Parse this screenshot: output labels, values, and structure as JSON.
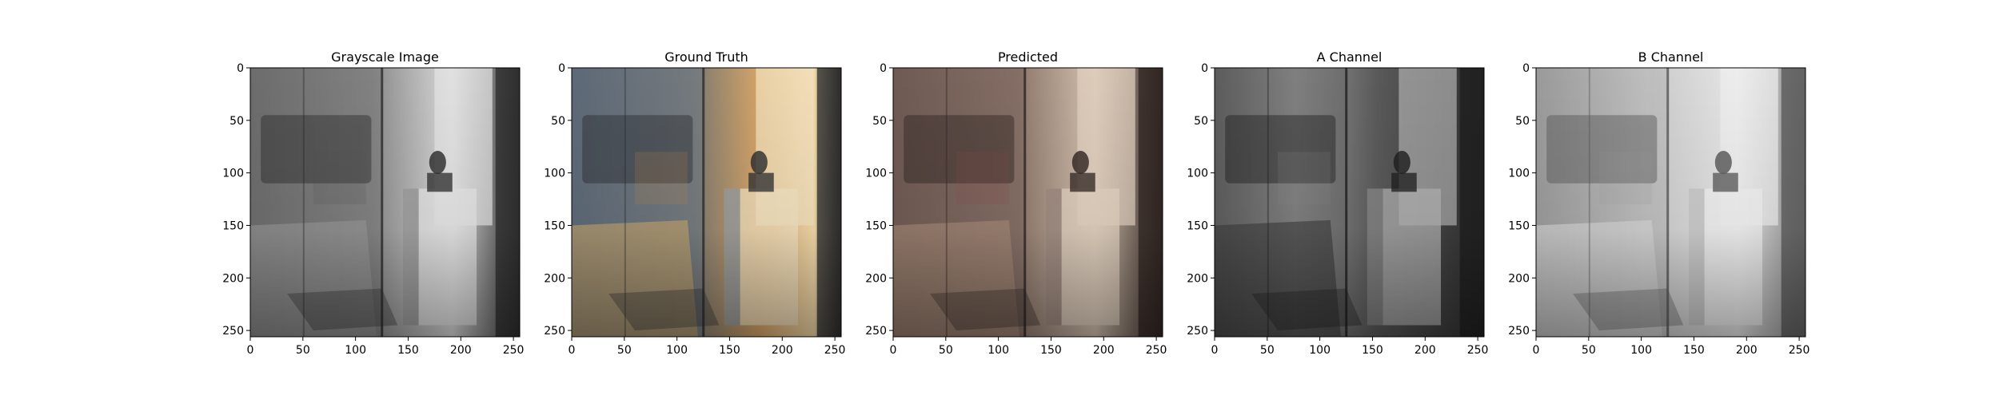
{
  "chart_data": [
    {
      "type": "image",
      "title": "Grayscale Image",
      "xlim": [
        0,
        256
      ],
      "ylim": [
        256,
        0
      ],
      "xticks": [
        0,
        50,
        100,
        150,
        200,
        250
      ],
      "yticks": [
        0,
        50,
        100,
        150,
        200,
        250
      ],
      "render": "grayscale"
    },
    {
      "type": "image",
      "title": "Ground Truth",
      "xlim": [
        0,
        256
      ],
      "ylim": [
        256,
        0
      ],
      "xticks": [
        0,
        50,
        100,
        150,
        200,
        250
      ],
      "yticks": [
        0,
        50,
        100,
        150,
        200,
        250
      ],
      "render": "color"
    },
    {
      "type": "image",
      "title": "Predicted",
      "xlim": [
        0,
        256
      ],
      "ylim": [
        256,
        0
      ],
      "xticks": [
        0,
        50,
        100,
        150,
        200,
        250
      ],
      "yticks": [
        0,
        50,
        100,
        150,
        200,
        250
      ],
      "render": "sepia"
    },
    {
      "type": "image",
      "title": "A Channel",
      "xlim": [
        0,
        256
      ],
      "ylim": [
        256,
        0
      ],
      "xticks": [
        0,
        50,
        100,
        150,
        200,
        250
      ],
      "yticks": [
        0,
        50,
        100,
        150,
        200,
        250
      ],
      "render": "dark-channel"
    },
    {
      "type": "image",
      "title": "B Channel",
      "xlim": [
        0,
        256
      ],
      "ylim": [
        256,
        0
      ],
      "xticks": [
        0,
        50,
        100,
        150,
        200,
        250
      ],
      "yticks": [
        0,
        50,
        100,
        150,
        200,
        250
      ],
      "render": "light-channel"
    }
  ]
}
